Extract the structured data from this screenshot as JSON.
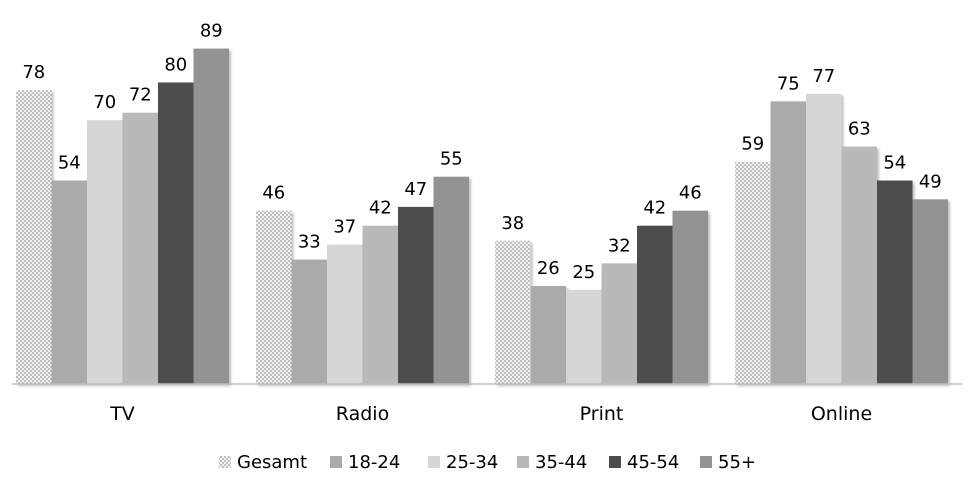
{
  "chart_data": {
    "type": "bar",
    "categories": [
      "TV",
      "Radio",
      "Print",
      "Online"
    ],
    "series": [
      {
        "name": "Gesamt",
        "values": [
          78,
          46,
          38,
          59
        ],
        "color": "#dcdcdc",
        "pattern": "dots"
      },
      {
        "name": "18-24",
        "values": [
          54,
          33,
          26,
          75
        ],
        "color": "#ababab"
      },
      {
        "name": "25-34",
        "values": [
          70,
          37,
          25,
          77
        ],
        "color": "#d6d6d6"
      },
      {
        "name": "35-44",
        "values": [
          72,
          42,
          32,
          63
        ],
        "color": "#b9b9b9"
      },
      {
        "name": "45-54",
        "values": [
          80,
          47,
          42,
          54
        ],
        "color": "#4d4d4d"
      },
      {
        "name": "55+",
        "values": [
          89,
          55,
          46,
          49
        ],
        "color": "#939393"
      }
    ],
    "title": "",
    "xlabel": "",
    "ylabel": "",
    "ylim": [
      0,
      95
    ],
    "grid": false,
    "legend_position": "bottom",
    "data_labels": true
  }
}
